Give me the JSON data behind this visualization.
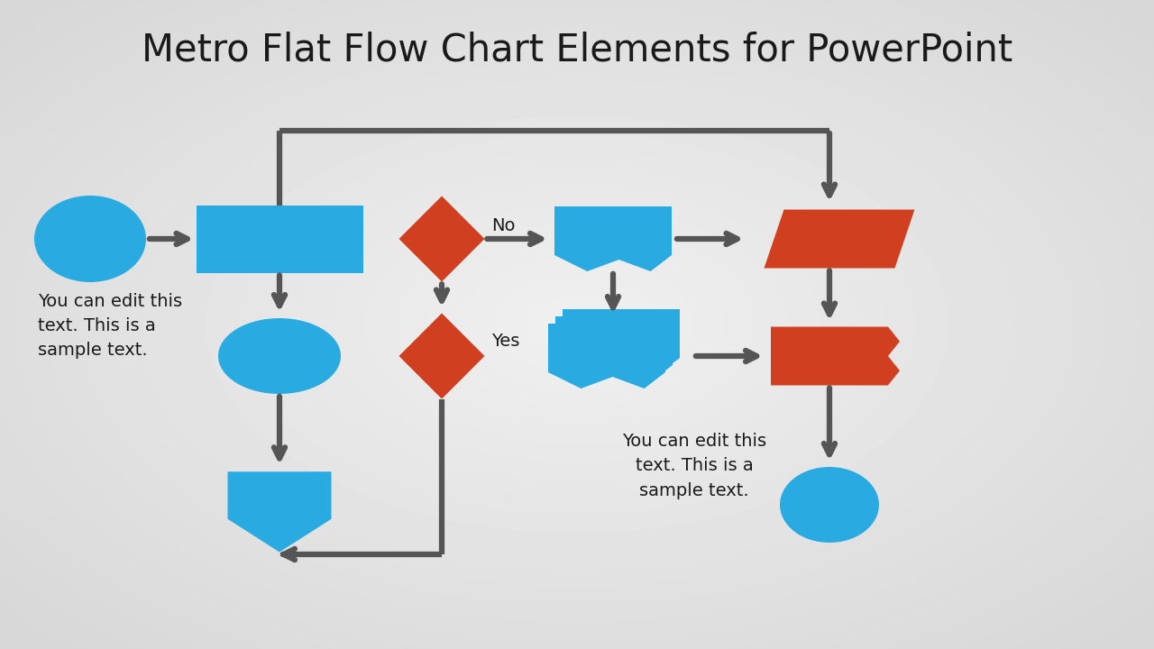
{
  "title": "Metro Flat Flow Chart Elements for PowerPoint",
  "title_fontsize": 30,
  "blue": "#29ABE2",
  "red": "#D04020",
  "arrow_color": "#555555",
  "text_color": "#1a1a1a",
  "sample_text_left": "You can edit this\ntext. This is a\nsample text.",
  "sample_text_right": "You can edit this\ntext. This is a\nsample text.",
  "no_label": "No",
  "yes_label": "Yes",
  "bg_light": "#f2f2f2",
  "bg_dark": "#d8d8d8"
}
